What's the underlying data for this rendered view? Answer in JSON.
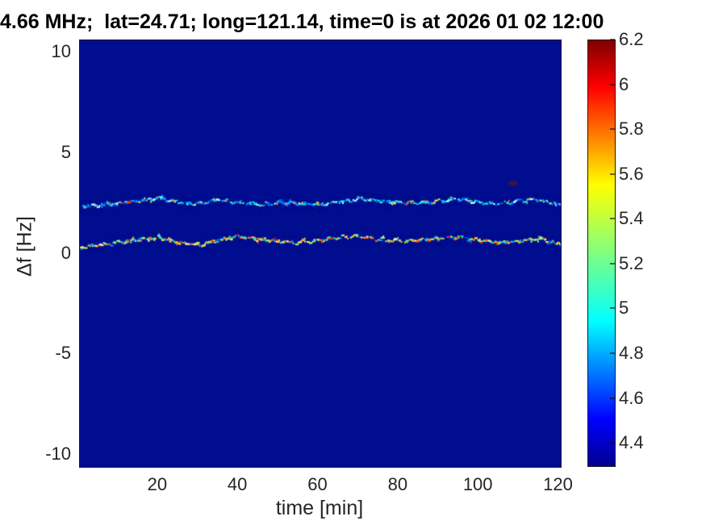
{
  "figure": {
    "title": "4.66 MHz;  lat=24.71; long=121.14, time=0 is at 2026 01 02 12:00"
  },
  "axes": {
    "xlabel": "time [min]",
    "ylabel": "Δf [Hz]",
    "x_tick_labels": [
      "20",
      "40",
      "60",
      "80",
      "100",
      "120"
    ],
    "y_tick_labels": [
      "10",
      "5",
      "0",
      "-5",
      "-10"
    ]
  },
  "colorbar": {
    "tick_labels": [
      "6.2",
      "6",
      "5.8",
      "5.6",
      "5.4",
      "5.2",
      "5",
      "4.8",
      "4.6",
      "4.4"
    ]
  },
  "chart_data": {
    "type": "heatmap",
    "title": "4.66 MHz;  lat=24.71; long=121.14, time=0 is at 2026 01 02 12:00",
    "xlabel": "time [min]",
    "ylabel": "Δf [Hz]",
    "xlim": [
      0.5,
      120.5
    ],
    "ylim": [
      -10.6,
      10.6
    ],
    "x_ticks": [
      20,
      40,
      60,
      80,
      100,
      120
    ],
    "y_ticks": [
      10,
      5,
      0,
      -5,
      -10
    ],
    "grid": false,
    "colormap": "jet",
    "colorbar_range": [
      4.3,
      6.2
    ],
    "colorbar_ticks": [
      6.2,
      6,
      5.8,
      5.6,
      5.4,
      5.2,
      5,
      4.8,
      4.6,
      4.4
    ],
    "background_value": 4.3,
    "background_color": "#000d8f",
    "series": [
      {
        "name": "upper Doppler trace (~2.5 Hz, mostly 4.6-5.2 values, cyan/blue speckles)",
        "t": [
          0,
          5,
          10,
          15,
          20,
          25,
          30,
          35,
          40,
          45,
          50,
          55,
          60,
          65,
          70,
          75,
          80,
          85,
          90,
          95,
          100,
          105,
          110,
          115,
          120
        ],
        "df_hz": [
          2.3,
          2.38,
          2.5,
          2.62,
          2.78,
          2.55,
          2.5,
          2.68,
          2.52,
          2.42,
          2.55,
          2.47,
          2.42,
          2.58,
          2.72,
          2.62,
          2.55,
          2.52,
          2.62,
          2.72,
          2.55,
          2.47,
          2.63,
          2.7,
          2.45
        ],
        "gap_prob": 0.18,
        "phase": 0.8,
        "palette": [
          {
            "c": "#0033cc",
            "w": 0.1
          },
          {
            "c": "#0066ff",
            "w": 0.16
          },
          {
            "c": "#00a6ff",
            "w": 0.2
          },
          {
            "c": "#00e0e0",
            "w": 0.2
          },
          {
            "c": "#57f0cf",
            "w": 0.1
          },
          {
            "c": "#a8f4ff",
            "w": 0.07
          },
          {
            "c": "#d9ffe8",
            "w": 0.04
          },
          {
            "c": "#ffe24a",
            "w": 0.06
          },
          {
            "c": "#ff9a28",
            "w": 0.04
          },
          {
            "c": "#ff4400",
            "w": 0.03
          }
        ]
      },
      {
        "name": "lower Doppler trace (~0.6 Hz, mostly 5.2-6.1 values, yellow/orange speckles)",
        "t": [
          0,
          5,
          10,
          15,
          20,
          25,
          30,
          35,
          40,
          45,
          50,
          55,
          60,
          65,
          70,
          75,
          80,
          85,
          90,
          95,
          100,
          105,
          110,
          115,
          120
        ],
        "df_hz": [
          0.3,
          0.42,
          0.55,
          0.72,
          0.8,
          0.55,
          0.42,
          0.68,
          0.85,
          0.72,
          0.6,
          0.55,
          0.65,
          0.8,
          0.85,
          0.7,
          0.62,
          0.65,
          0.75,
          0.8,
          0.65,
          0.55,
          0.65,
          0.75,
          0.45
        ],
        "gap_prob": 0.12,
        "phase": 2.1,
        "palette": [
          {
            "c": "#0048e0",
            "w": 0.07
          },
          {
            "c": "#00a0ff",
            "w": 0.11
          },
          {
            "c": "#00e0cc",
            "w": 0.13
          },
          {
            "c": "#7df09a",
            "w": 0.1
          },
          {
            "c": "#ccf855",
            "w": 0.11
          },
          {
            "c": "#ffe24a",
            "w": 0.16
          },
          {
            "c": "#ffa428",
            "w": 0.14
          },
          {
            "c": "#ff5a00",
            "w": 0.08
          },
          {
            "c": "#e02810",
            "w": 0.06
          },
          {
            "c": "#fff6da",
            "w": 0.04
          }
        ]
      }
    ],
    "anomaly_dot": {
      "t": 108.6,
      "df_hz": 3.5,
      "color": "#6e1212"
    },
    "legend": null
  }
}
